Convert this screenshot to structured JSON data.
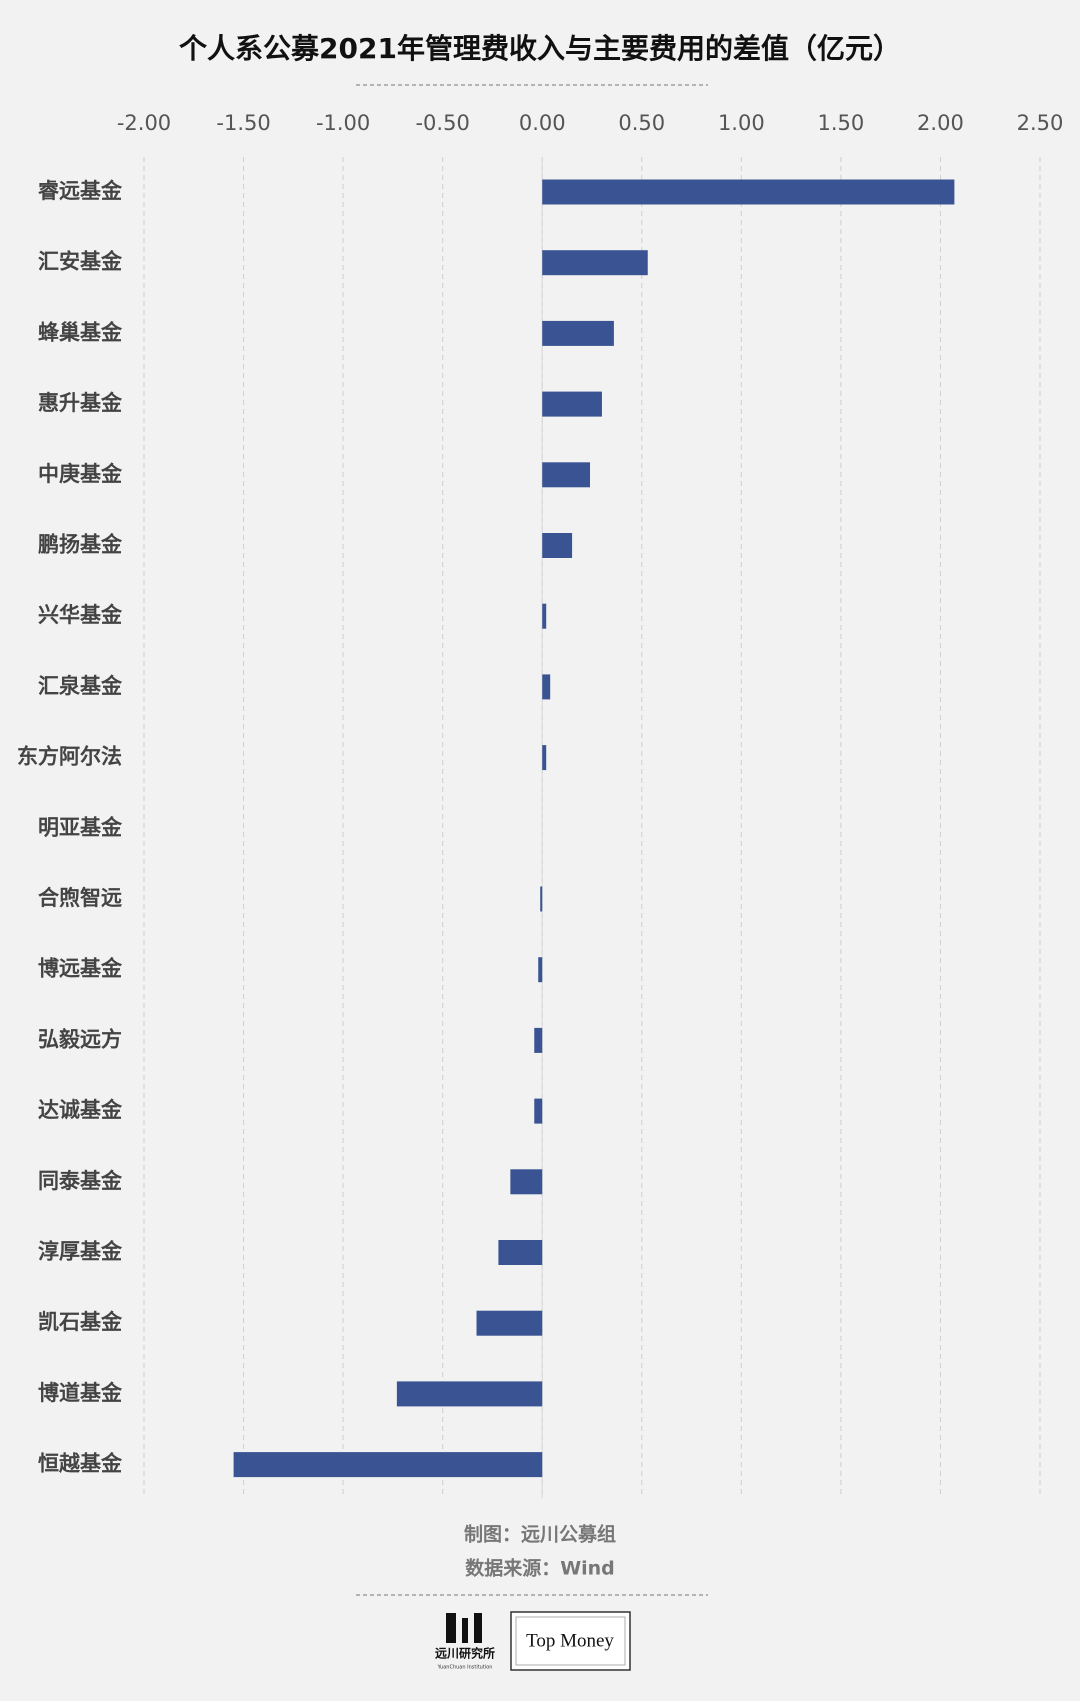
{
  "chart_data": {
    "type": "barh",
    "title": "个人系公募2021年管理费收入与主要费用的差值（亿元）",
    "categories": [
      "睿远基金",
      "汇安基金",
      "蜂巢基金",
      "惠升基金",
      "中庚基金",
      "鹏扬基金",
      "兴华基金",
      "汇泉基金",
      "东方阿尔法",
      "明亚基金",
      "合煦智远",
      "博远基金",
      "弘毅远方",
      "达诚基金",
      "同泰基金",
      "淳厚基金",
      "凯石基金",
      "博道基金",
      "恒越基金"
    ],
    "values": [
      2.07,
      0.53,
      0.36,
      0.3,
      0.24,
      0.15,
      0.02,
      0.04,
      0.02,
      0,
      -0.01,
      -0.02,
      -0.04,
      -0.04,
      -0.16,
      -0.22,
      -0.33,
      -0.73,
      -1.55
    ],
    "color": "#3a5493",
    "xlim": [
      -2,
      2.5
    ],
    "xticks": [
      {
        "value": -2,
        "label": "-2.00"
      },
      {
        "value": -1.5,
        "label": "-1.50"
      },
      {
        "value": -1,
        "label": "-1.00"
      },
      {
        "value": -0.5,
        "label": "-0.50"
      },
      {
        "value": 0,
        "label": "0.00"
      },
      {
        "value": 0.5,
        "label": "0.50"
      },
      {
        "value": 1,
        "label": "1.00"
      },
      {
        "value": 1.5,
        "label": "1.50"
      },
      {
        "value": 2,
        "label": "2.00"
      },
      {
        "value": 2.5,
        "label": "2.50"
      }
    ],
    "grid": true,
    "credit": "制图：远川公募组",
    "source": "数据来源：Wind"
  },
  "footer": {
    "logo1": "远川研究所",
    "logo1_sub": "YuanChuan Institution",
    "logo2": "Top Money"
  }
}
